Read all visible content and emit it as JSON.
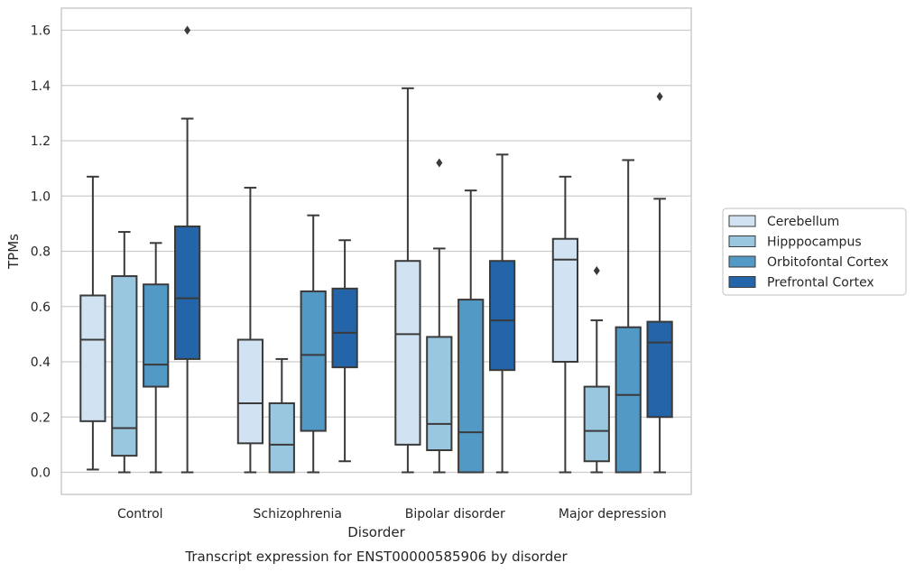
{
  "chart_data": {
    "type": "box",
    "caption": "Transcript expression for ENST00000585906 by disorder",
    "xlabel": "Disorder",
    "ylabel": "TPMs",
    "ylim": [
      -0.08,
      1.68
    ],
    "yticks": [
      "0.0",
      "0.2",
      "0.4",
      "0.6",
      "0.8",
      "1.0",
      "1.2",
      "1.4",
      "1.6"
    ],
    "grid": "horizontal",
    "legend_position": "right",
    "categories": [
      "Control",
      "Schizophrenia",
      "Bipolar disorder",
      "Major depression"
    ],
    "series": [
      {
        "name": "Cerebellum",
        "color": "#d1e2f2",
        "boxes": [
          {
            "whislo": 0.01,
            "q1": 0.185,
            "med": 0.48,
            "q3": 0.64,
            "whishi": 1.07,
            "fliers": []
          },
          {
            "whislo": 0.0,
            "q1": 0.105,
            "med": 0.25,
            "q3": 0.48,
            "whishi": 1.03,
            "fliers": []
          },
          {
            "whislo": 0.0,
            "q1": 0.1,
            "med": 0.5,
            "q3": 0.765,
            "whishi": 1.39,
            "fliers": []
          },
          {
            "whislo": 0.0,
            "q1": 0.4,
            "med": 0.77,
            "q3": 0.845,
            "whishi": 1.07,
            "fliers": []
          }
        ]
      },
      {
        "name": "Hipppocampus",
        "color": "#9ac7e0",
        "boxes": [
          {
            "whislo": 0.0,
            "q1": 0.06,
            "med": 0.16,
            "q3": 0.71,
            "whishi": 0.87,
            "fliers": []
          },
          {
            "whislo": 0.0,
            "q1": 0.0,
            "med": 0.1,
            "q3": 0.25,
            "whishi": 0.41,
            "fliers": []
          },
          {
            "whislo": 0.0,
            "q1": 0.08,
            "med": 0.175,
            "q3": 0.49,
            "whishi": 0.81,
            "fliers": [
              1.12
            ]
          },
          {
            "whislo": 0.0,
            "q1": 0.04,
            "med": 0.15,
            "q3": 0.31,
            "whishi": 0.55,
            "fliers": [
              0.73
            ]
          }
        ]
      },
      {
        "name": "Orbitofontal Cortex",
        "color": "#5399c6",
        "boxes": [
          {
            "whislo": 0.0,
            "q1": 0.31,
            "med": 0.39,
            "q3": 0.68,
            "whishi": 0.83,
            "fliers": []
          },
          {
            "whislo": 0.0,
            "q1": 0.15,
            "med": 0.425,
            "q3": 0.655,
            "whishi": 0.93,
            "fliers": []
          },
          {
            "whislo": 0.0,
            "q1": 0.0,
            "med": 0.145,
            "q3": 0.625,
            "whishi": 1.02,
            "fliers": []
          },
          {
            "whislo": 0.0,
            "q1": 0.0,
            "med": 0.28,
            "q3": 0.525,
            "whishi": 1.13,
            "fliers": []
          }
        ]
      },
      {
        "name": "Prefrontal Cortex",
        "color": "#2464a9",
        "boxes": [
          {
            "whislo": 0.0,
            "q1": 0.41,
            "med": 0.63,
            "q3": 0.89,
            "whishi": 1.28,
            "fliers": [
              1.6
            ]
          },
          {
            "whislo": 0.04,
            "q1": 0.38,
            "med": 0.505,
            "q3": 0.665,
            "whishi": 0.84,
            "fliers": []
          },
          {
            "whislo": 0.0,
            "q1": 0.37,
            "med": 0.55,
            "q3": 0.765,
            "whishi": 1.15,
            "fliers": []
          },
          {
            "whislo": 0.0,
            "q1": 0.2,
            "med": 0.47,
            "q3": 0.545,
            "whishi": 0.99,
            "fliers": [
              1.36
            ]
          }
        ]
      }
    ]
  }
}
